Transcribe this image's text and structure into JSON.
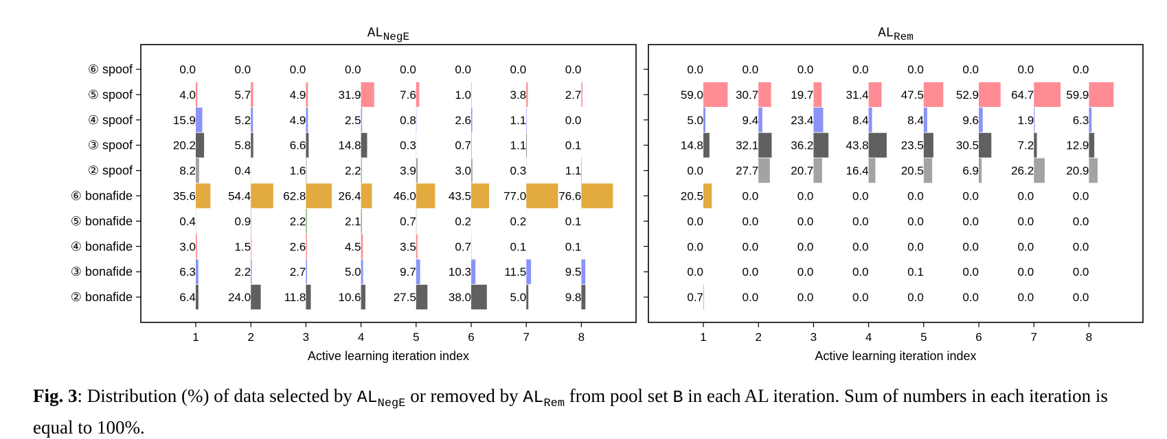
{
  "chart_data": [
    {
      "type": "bar",
      "title_main": "AL",
      "title_sub": "NegE",
      "xlabel": "Active learning iteration index",
      "x": [
        1,
        2,
        3,
        4,
        5,
        6,
        7,
        8
      ],
      "categories": [
        "⑥ spoof",
        "⑤ spoof",
        "④ spoof",
        "③ spoof",
        "② spoof",
        "⑥ bonafide",
        "⑤ bonafide",
        "④ bonafide",
        "③ bonafide",
        "② bonafide"
      ],
      "colors": [
        "#ff8c94",
        "#ff8c94",
        "#8a94f7",
        "#606060",
        "#a3a3a3",
        "#e3aa3f",
        "#7da36a",
        "#ff8c94",
        "#8a94f7",
        "#606060"
      ],
      "values": [
        [
          0.0,
          0.0,
          0.0,
          0.0,
          0.0,
          0.0,
          0.0,
          0.0
        ],
        [
          4.0,
          5.7,
          4.9,
          31.9,
          7.6,
          1.0,
          3.8,
          2.7
        ],
        [
          15.9,
          5.2,
          4.9,
          2.5,
          0.8,
          2.6,
          1.1,
          0.0
        ],
        [
          20.2,
          5.8,
          6.6,
          14.8,
          0.3,
          0.7,
          1.1,
          0.1
        ],
        [
          8.2,
          0.4,
          1.6,
          2.2,
          3.9,
          3.0,
          0.3,
          1.1
        ],
        [
          35.6,
          54.4,
          62.8,
          26.4,
          46.0,
          43.5,
          77.0,
          76.6
        ],
        [
          0.4,
          0.9,
          2.2,
          2.1,
          0.7,
          0.2,
          0.2,
          0.1
        ],
        [
          3.0,
          1.5,
          2.6,
          4.5,
          3.5,
          0.7,
          0.1,
          0.1
        ],
        [
          6.3,
          2.2,
          2.7,
          5.0,
          9.7,
          10.3,
          11.5,
          9.5
        ],
        [
          6.4,
          24.0,
          11.8,
          10.6,
          27.5,
          38.0,
          5.0,
          9.8
        ]
      ]
    },
    {
      "type": "bar",
      "title_main": "AL",
      "title_sub": "Rem",
      "xlabel": "Active learning iteration index",
      "x": [
        1,
        2,
        3,
        4,
        5,
        6,
        7,
        8
      ],
      "categories": [
        "⑥ spoof",
        "⑤ spoof",
        "④ spoof",
        "③ spoof",
        "② spoof",
        "⑥ bonafide",
        "⑤ bonafide",
        "④ bonafide",
        "③ bonafide",
        "② bonafide"
      ],
      "colors": [
        "#ff8c94",
        "#ff8c94",
        "#8a94f7",
        "#606060",
        "#a3a3a3",
        "#e3aa3f",
        "#7da36a",
        "#ff8c94",
        "#8a94f7",
        "#606060"
      ],
      "values": [
        [
          0.0,
          0.0,
          0.0,
          0.0,
          0.0,
          0.0,
          0.0,
          0.0
        ],
        [
          59.0,
          30.7,
          19.7,
          31.4,
          47.5,
          52.9,
          64.7,
          59.9
        ],
        [
          5.0,
          9.4,
          23.4,
          8.4,
          8.4,
          9.6,
          1.9,
          6.3
        ],
        [
          14.8,
          32.1,
          36.2,
          43.8,
          23.5,
          30.5,
          7.2,
          12.9
        ],
        [
          0.0,
          27.7,
          20.7,
          16.4,
          20.5,
          6.9,
          26.2,
          20.9
        ],
        [
          20.5,
          0.0,
          0.0,
          0.0,
          0.0,
          0.0,
          0.0,
          0.0
        ],
        [
          0.0,
          0.0,
          0.0,
          0.0,
          0.0,
          0.0,
          0.0,
          0.0
        ],
        [
          0.0,
          0.0,
          0.0,
          0.0,
          0.0,
          0.0,
          0.0,
          0.0
        ],
        [
          0.0,
          0.0,
          0.0,
          0.0,
          0.1,
          0.0,
          0.0,
          0.0
        ],
        [
          0.7,
          0.0,
          0.0,
          0.0,
          0.0,
          0.0,
          0.0,
          0.0
        ]
      ]
    }
  ],
  "caption": {
    "fig_label": "Fig. 3",
    "text_1": ": Distribution (%) of data selected by ",
    "code_1": "AL",
    "code_1_sub": "NegE",
    "text_2": " or removed by ",
    "code_2": "AL",
    "code_2_sub": "Rem",
    "text_3": " from pool set ",
    "code_3": "B",
    "text_4": " in each AL iteration. Sum of numbers in each iteration is equal to 100%."
  }
}
